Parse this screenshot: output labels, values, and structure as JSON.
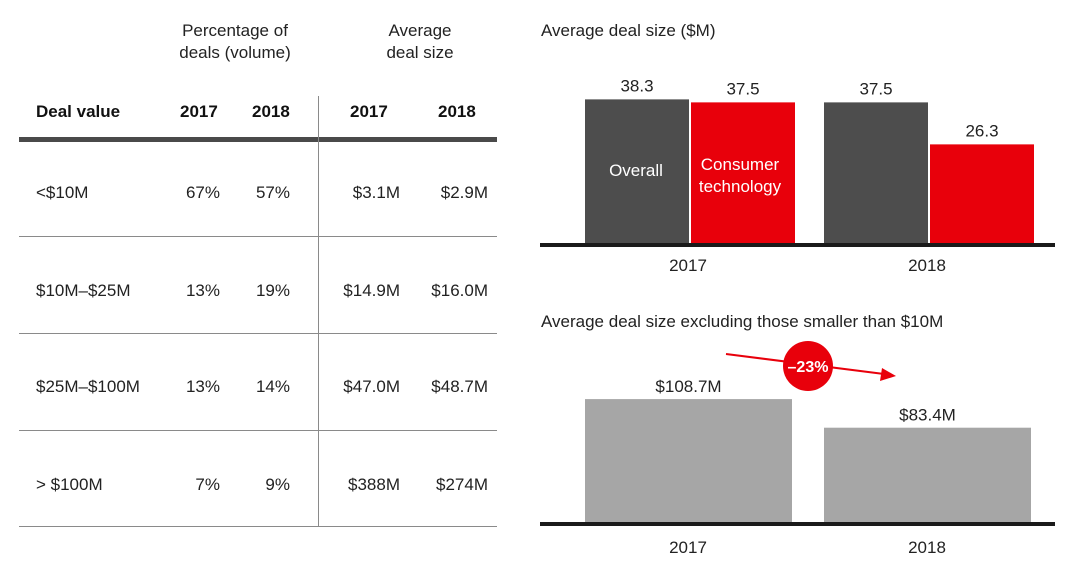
{
  "table": {
    "group_headers": {
      "percentage": "Percentage of deals (volume)",
      "percentage_line1": "Percentage of",
      "percentage_line2": "deals (volume)",
      "average": "Average deal size",
      "average_line1": "Average",
      "average_line2": "deal size"
    },
    "columns": [
      "Deal value",
      "2017",
      "2018",
      "2017",
      "2018"
    ],
    "rows": [
      {
        "label": "<$10M",
        "pct_2017": "67%",
        "pct_2018": "57%",
        "avg_2017": "$3.1M",
        "avg_2018": "$2.9M"
      },
      {
        "label": "$10M–$25M",
        "pct_2017": "13%",
        "pct_2018": "19%",
        "avg_2017": "$14.9M",
        "avg_2018": "$16.0M"
      },
      {
        "label": "$25M–$100M",
        "pct_2017": "13%",
        "pct_2018": "14%",
        "avg_2017": "$47.0M",
        "avg_2018": "$48.7M"
      },
      {
        "label": "> $100M",
        "pct_2017": "7%",
        "pct_2018": "9%",
        "avg_2017": "$388M",
        "avg_2018": "$274M"
      }
    ]
  },
  "chart_data": [
    {
      "type": "bar",
      "title": "Average deal size ($M)",
      "categories": [
        "2017",
        "2018"
      ],
      "series": [
        {
          "name": "Overall",
          "values": [
            38.3,
            37.5
          ],
          "color": "#4d4d4d"
        },
        {
          "name": "Consumer technology",
          "values": [
            37.5,
            26.3
          ],
          "color": "#e8000b"
        }
      ],
      "value_labels": [
        [
          "38.3",
          "37.5"
        ],
        [
          "37.5",
          "26.3"
        ]
      ],
      "legend_labels": {
        "overall": "Overall",
        "consumer_line1": "Consumer",
        "consumer_line2": "technology"
      },
      "ylim": [
        0,
        40
      ],
      "grid": false
    },
    {
      "type": "bar",
      "title": "Average deal size excluding those smaller than $10M",
      "categories": [
        "2017",
        "2018"
      ],
      "values": [
        108.7,
        83.4
      ],
      "value_labels": [
        "$108.7M",
        "$83.4M"
      ],
      "color": "#a6a6a6",
      "annotation": {
        "text": "–23%",
        "color": "#e8000b"
      },
      "ylim": [
        0,
        130
      ],
      "grid": false
    }
  ]
}
